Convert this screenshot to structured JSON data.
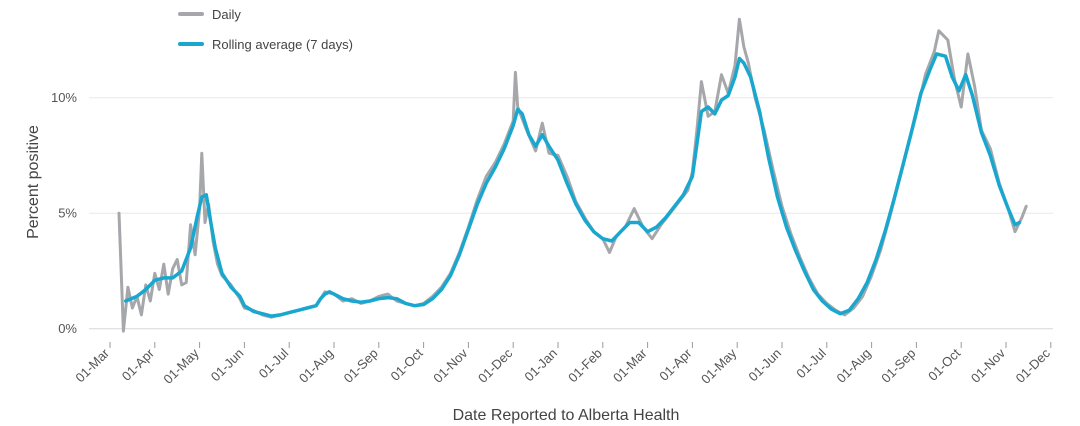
{
  "chart_data": {
    "type": "line",
    "xlabel": "Date Reported to Alberta Health",
    "ylabel": "Percent positive",
    "y_ticks": [
      {
        "value": 0,
        "label": "0%"
      },
      {
        "value": 5,
        "label": "5%"
      },
      {
        "value": 10,
        "label": "10%"
      }
    ],
    "ylim": [
      -0.4,
      13.8
    ],
    "x_ticks": [
      "01-Mar",
      "01-Apr",
      "01-May",
      "01-Jun",
      "01-Jul",
      "01-Aug",
      "01-Sep",
      "01-Oct",
      "01-Nov",
      "01-Dec",
      "01-Jan",
      "01-Feb",
      "01-Mar",
      "01-Apr",
      "01-May",
      "01-Jun",
      "01-Jul",
      "01-Aug",
      "01-Sep",
      "01-Oct",
      "01-Nov",
      "01-Dec"
    ],
    "x_tick_month_index": [
      0,
      1,
      2,
      3,
      4,
      5,
      6,
      7,
      8,
      9,
      10,
      11,
      12,
      13,
      14,
      15,
      16,
      17,
      18,
      19,
      20,
      21
    ],
    "xlim_months": [
      0,
      21
    ],
    "grid": "horizontal",
    "legend_position": "top-left",
    "series": [
      {
        "name": "Daily",
        "color": "#a5a7aa",
        "points": [
          [
            0.2,
            5.0
          ],
          [
            0.3,
            -0.1
          ],
          [
            0.4,
            1.8
          ],
          [
            0.5,
            0.9
          ],
          [
            0.6,
            1.4
          ],
          [
            0.7,
            0.6
          ],
          [
            0.8,
            1.9
          ],
          [
            0.9,
            1.2
          ],
          [
            1.0,
            2.4
          ],
          [
            1.1,
            1.7
          ],
          [
            1.2,
            2.8
          ],
          [
            1.3,
            1.5
          ],
          [
            1.4,
            2.6
          ],
          [
            1.5,
            3.0
          ],
          [
            1.6,
            1.9
          ],
          [
            1.7,
            2.0
          ],
          [
            1.8,
            4.5
          ],
          [
            1.9,
            3.2
          ],
          [
            2.0,
            5.2
          ],
          [
            2.05,
            7.6
          ],
          [
            2.12,
            4.6
          ],
          [
            2.2,
            5.4
          ],
          [
            2.3,
            3.8
          ],
          [
            2.4,
            2.8
          ],
          [
            2.5,
            2.3
          ],
          [
            2.6,
            2.1
          ],
          [
            2.7,
            1.9
          ],
          [
            2.8,
            1.6
          ],
          [
            2.9,
            1.3
          ],
          [
            3.0,
            0.9
          ],
          [
            3.2,
            0.8
          ],
          [
            3.4,
            0.6
          ],
          [
            3.6,
            0.5
          ],
          [
            3.8,
            0.6
          ],
          [
            4.0,
            0.7
          ],
          [
            4.2,
            0.8
          ],
          [
            4.4,
            0.9
          ],
          [
            4.6,
            1.0
          ],
          [
            4.8,
            1.6
          ],
          [
            5.0,
            1.5
          ],
          [
            5.2,
            1.2
          ],
          [
            5.4,
            1.3
          ],
          [
            5.6,
            1.1
          ],
          [
            5.8,
            1.2
          ],
          [
            6.0,
            1.4
          ],
          [
            6.2,
            1.5
          ],
          [
            6.4,
            1.2
          ],
          [
            6.6,
            1.1
          ],
          [
            6.8,
            1.0
          ],
          [
            7.0,
            1.1
          ],
          [
            7.2,
            1.4
          ],
          [
            7.4,
            1.8
          ],
          [
            7.6,
            2.4
          ],
          [
            7.8,
            3.3
          ],
          [
            8.0,
            4.4
          ],
          [
            8.2,
            5.6
          ],
          [
            8.4,
            6.6
          ],
          [
            8.6,
            7.2
          ],
          [
            8.8,
            8.0
          ],
          [
            9.0,
            9.0
          ],
          [
            9.05,
            11.1
          ],
          [
            9.1,
            9.6
          ],
          [
            9.3,
            8.6
          ],
          [
            9.5,
            7.7
          ],
          [
            9.65,
            8.9
          ],
          [
            9.8,
            7.6
          ],
          [
            10.0,
            7.5
          ],
          [
            10.2,
            6.6
          ],
          [
            10.4,
            5.5
          ],
          [
            10.6,
            4.8
          ],
          [
            10.8,
            4.2
          ],
          [
            11.0,
            3.9
          ],
          [
            11.15,
            3.3
          ],
          [
            11.3,
            4.0
          ],
          [
            11.5,
            4.4
          ],
          [
            11.7,
            5.2
          ],
          [
            11.9,
            4.4
          ],
          [
            12.1,
            3.9
          ],
          [
            12.3,
            4.5
          ],
          [
            12.5,
            5.0
          ],
          [
            12.7,
            5.5
          ],
          [
            12.9,
            6.0
          ],
          [
            13.0,
            6.8
          ],
          [
            13.1,
            8.6
          ],
          [
            13.2,
            10.7
          ],
          [
            13.35,
            9.2
          ],
          [
            13.5,
            9.4
          ],
          [
            13.65,
            11.0
          ],
          [
            13.8,
            10.2
          ],
          [
            13.95,
            11.4
          ],
          [
            14.05,
            13.4
          ],
          [
            14.15,
            12.2
          ],
          [
            14.25,
            11.5
          ],
          [
            14.4,
            10.0
          ],
          [
            14.6,
            8.6
          ],
          [
            14.8,
            6.9
          ],
          [
            15.0,
            5.3
          ],
          [
            15.2,
            4.1
          ],
          [
            15.4,
            3.1
          ],
          [
            15.6,
            2.2
          ],
          [
            15.8,
            1.5
          ],
          [
            16.0,
            1.1
          ],
          [
            16.2,
            0.8
          ],
          [
            16.4,
            0.6
          ],
          [
            16.6,
            0.9
          ],
          [
            16.8,
            1.4
          ],
          [
            17.0,
            2.3
          ],
          [
            17.2,
            3.4
          ],
          [
            17.4,
            4.8
          ],
          [
            17.6,
            6.3
          ],
          [
            17.8,
            7.8
          ],
          [
            18.0,
            9.3
          ],
          [
            18.2,
            11.0
          ],
          [
            18.4,
            12.0
          ],
          [
            18.5,
            12.9
          ],
          [
            18.7,
            12.5
          ],
          [
            18.85,
            10.8
          ],
          [
            19.0,
            9.6
          ],
          [
            19.15,
            11.9
          ],
          [
            19.3,
            10.5
          ],
          [
            19.45,
            8.6
          ],
          [
            19.65,
            7.8
          ],
          [
            19.85,
            6.3
          ],
          [
            20.05,
            5.2
          ],
          [
            20.2,
            4.2
          ],
          [
            20.35,
            4.8
          ],
          [
            20.45,
            5.3
          ]
        ]
      },
      {
        "name": "Rolling average (7 days)",
        "color": "#1aa7cf",
        "points": [
          [
            0.35,
            1.2
          ],
          [
            0.6,
            1.4
          ],
          [
            0.8,
            1.7
          ],
          [
            1.0,
            2.1
          ],
          [
            1.2,
            2.2
          ],
          [
            1.4,
            2.2
          ],
          [
            1.6,
            2.5
          ],
          [
            1.8,
            3.5
          ],
          [
            1.95,
            4.9
          ],
          [
            2.05,
            5.7
          ],
          [
            2.15,
            5.8
          ],
          [
            2.25,
            4.6
          ],
          [
            2.35,
            3.5
          ],
          [
            2.5,
            2.4
          ],
          [
            2.7,
            1.8
          ],
          [
            2.9,
            1.4
          ],
          [
            3.0,
            1.0
          ],
          [
            3.2,
            0.75
          ],
          [
            3.4,
            0.65
          ],
          [
            3.6,
            0.55
          ],
          [
            3.8,
            0.6
          ],
          [
            4.0,
            0.7
          ],
          [
            4.2,
            0.8
          ],
          [
            4.4,
            0.9
          ],
          [
            4.6,
            1.0
          ],
          [
            4.7,
            1.3
          ],
          [
            4.8,
            1.5
          ],
          [
            4.9,
            1.6
          ],
          [
            5.0,
            1.5
          ],
          [
            5.2,
            1.3
          ],
          [
            5.4,
            1.2
          ],
          [
            5.6,
            1.15
          ],
          [
            5.8,
            1.2
          ],
          [
            6.0,
            1.3
          ],
          [
            6.2,
            1.35
          ],
          [
            6.4,
            1.3
          ],
          [
            6.6,
            1.1
          ],
          [
            6.8,
            1.0
          ],
          [
            7.0,
            1.05
          ],
          [
            7.2,
            1.3
          ],
          [
            7.4,
            1.7
          ],
          [
            7.6,
            2.3
          ],
          [
            7.8,
            3.2
          ],
          [
            8.0,
            4.3
          ],
          [
            8.2,
            5.4
          ],
          [
            8.4,
            6.3
          ],
          [
            8.6,
            7.0
          ],
          [
            8.8,
            7.8
          ],
          [
            9.0,
            8.8
          ],
          [
            9.1,
            9.5
          ],
          [
            9.2,
            9.3
          ],
          [
            9.35,
            8.4
          ],
          [
            9.5,
            7.9
          ],
          [
            9.65,
            8.4
          ],
          [
            9.8,
            7.9
          ],
          [
            10.0,
            7.3
          ],
          [
            10.2,
            6.3
          ],
          [
            10.4,
            5.4
          ],
          [
            10.6,
            4.7
          ],
          [
            10.8,
            4.2
          ],
          [
            11.0,
            3.9
          ],
          [
            11.2,
            3.8
          ],
          [
            11.4,
            4.2
          ],
          [
            11.6,
            4.6
          ],
          [
            11.8,
            4.6
          ],
          [
            12.0,
            4.2
          ],
          [
            12.2,
            4.4
          ],
          [
            12.4,
            4.8
          ],
          [
            12.6,
            5.3
          ],
          [
            12.8,
            5.8
          ],
          [
            13.0,
            6.6
          ],
          [
            13.1,
            8.0
          ],
          [
            13.2,
            9.4
          ],
          [
            13.35,
            9.6
          ],
          [
            13.5,
            9.3
          ],
          [
            13.65,
            9.9
          ],
          [
            13.8,
            10.1
          ],
          [
            13.95,
            10.9
          ],
          [
            14.05,
            11.7
          ],
          [
            14.15,
            11.5
          ],
          [
            14.3,
            10.9
          ],
          [
            14.5,
            9.4
          ],
          [
            14.7,
            7.4
          ],
          [
            14.9,
            5.7
          ],
          [
            15.1,
            4.4
          ],
          [
            15.3,
            3.4
          ],
          [
            15.5,
            2.5
          ],
          [
            15.7,
            1.7
          ],
          [
            15.9,
            1.2
          ],
          [
            16.1,
            0.85
          ],
          [
            16.3,
            0.65
          ],
          [
            16.5,
            0.8
          ],
          [
            16.7,
            1.3
          ],
          [
            16.9,
            2.0
          ],
          [
            17.1,
            3.0
          ],
          [
            17.3,
            4.2
          ],
          [
            17.5,
            5.6
          ],
          [
            17.7,
            7.1
          ],
          [
            17.9,
            8.6
          ],
          [
            18.1,
            10.2
          ],
          [
            18.3,
            11.2
          ],
          [
            18.45,
            11.9
          ],
          [
            18.65,
            11.8
          ],
          [
            18.8,
            10.9
          ],
          [
            18.95,
            10.3
          ],
          [
            19.1,
            11.0
          ],
          [
            19.25,
            10.1
          ],
          [
            19.45,
            8.5
          ],
          [
            19.65,
            7.5
          ],
          [
            19.85,
            6.2
          ],
          [
            20.05,
            5.2
          ],
          [
            20.2,
            4.5
          ],
          [
            20.3,
            4.6
          ]
        ]
      }
    ]
  }
}
